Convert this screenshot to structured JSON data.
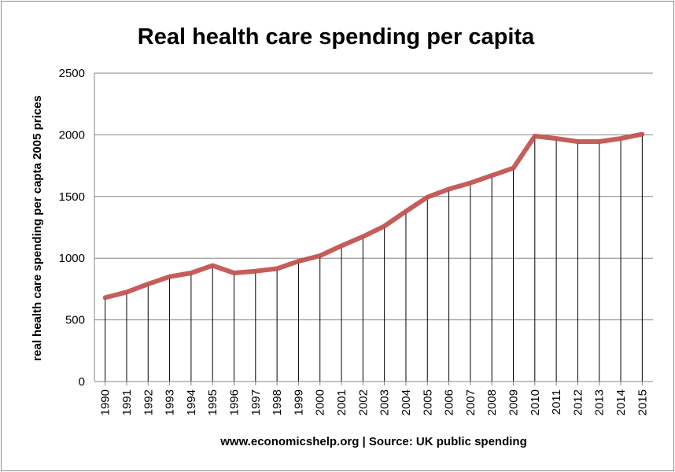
{
  "chart_data": {
    "type": "line",
    "title": "Real health care spending per capita",
    "xlabel": "www.economicshelp.org | Source: UK public spending",
    "ylabel": "real health care spending per capta 2005 prices",
    "ylim": [
      0,
      2500
    ],
    "yticks": [
      "0",
      "500",
      "1000",
      "1500",
      "2000",
      "2500"
    ],
    "grid": true,
    "drop_lines": true,
    "legend": "none",
    "categories": [
      "1990",
      "1991",
      "1992",
      "1993",
      "1994",
      "1995",
      "1996",
      "1997",
      "1998",
      "1999",
      "2000",
      "2001",
      "2002",
      "2003",
      "2004",
      "2005",
      "2006",
      "2007",
      "2008",
      "2009",
      "2010",
      "2011",
      "2012",
      "2013",
      "2014",
      "2015"
    ],
    "series": [
      {
        "values": [
          680,
          725,
          790,
          850,
          880,
          940,
          880,
          895,
          915,
          975,
          1020,
          1100,
          1175,
          1260,
          1380,
          1495,
          1560,
          1610,
          1670,
          1730,
          1990,
          1970,
          1945,
          1945,
          1970,
          2005
        ],
        "color": "#c0504d"
      }
    ],
    "colors": {
      "grid": "#868686",
      "axis": "#868686",
      "drop_line": "#000000"
    }
  }
}
